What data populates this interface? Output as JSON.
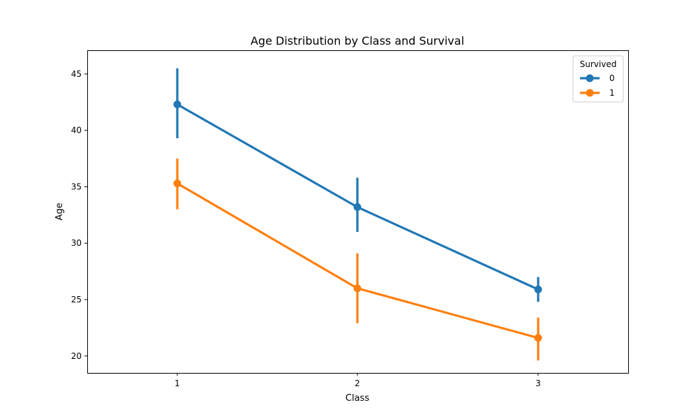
{
  "chart_data": {
    "type": "line",
    "title": "Age Distribution by Class and Survival",
    "xlabel": "Class",
    "ylabel": "Age",
    "categories": [
      "1",
      "2",
      "3"
    ],
    "ylim": [
      18.5,
      47.1
    ],
    "yticks": [
      20,
      25,
      30,
      35,
      40,
      45
    ],
    "legend": {
      "title": "Survived",
      "position": "top-right"
    },
    "series": [
      {
        "name": "0",
        "color": "#1f77b4",
        "values": [
          42.3,
          33.2,
          25.9
        ],
        "ci_low": [
          39.3,
          31.0,
          24.8
        ],
        "ci_high": [
          45.5,
          35.8,
          27.0
        ]
      },
      {
        "name": "1",
        "color": "#ff7f0e",
        "values": [
          35.3,
          26.0,
          21.6
        ],
        "ci_low": [
          33.0,
          22.9,
          19.6
        ],
        "ci_high": [
          37.5,
          29.1,
          23.4
        ]
      }
    ]
  }
}
